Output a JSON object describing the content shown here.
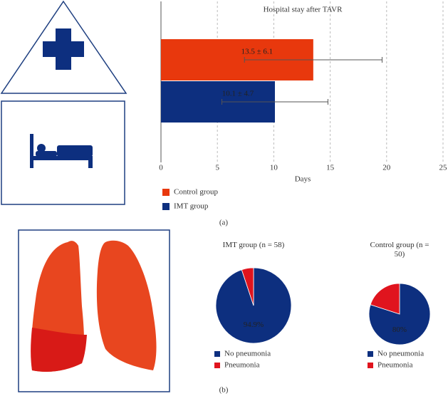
{
  "chart_data": [
    {
      "type": "bar",
      "orientation": "horizontal",
      "title": "Hospital stay after TAVR",
      "xlabel": "Days",
      "xlim": [
        0,
        25
      ],
      "xticks": [
        0,
        5,
        10,
        15,
        20,
        25
      ],
      "grid": true,
      "legend": "bottom-left",
      "caption": "(a)",
      "series": [
        {
          "name": "Control group",
          "color": "#e8380d",
          "values": [
            13.5
          ],
          "errors": [
            6.1
          ],
          "value_labels": [
            "13.5 ± 6.1"
          ]
        },
        {
          "name": "IMT group",
          "color": "#0d2f7f",
          "values": [
            10.1
          ],
          "errors": [
            4.7
          ],
          "value_labels": [
            "10.1 ± 4.7"
          ]
        }
      ]
    },
    {
      "type": "pie",
      "title": "IMT group (n = 58)",
      "categories": [
        "No pneumonia",
        "Pneumonia"
      ],
      "values": [
        94.9,
        5.1
      ],
      "value_labels": [
        "94.9%",
        null
      ],
      "colors": [
        "#0d2f7f",
        "#e0141e"
      ]
    },
    {
      "type": "pie",
      "title": "Control group (n = 50)",
      "categories": [
        "No pneumonia",
        "Pneumonia"
      ],
      "values": [
        80,
        20
      ],
      "value_labels": [
        "80%",
        null
      ],
      "colors": [
        "#0d2f7f",
        "#e0141e"
      ],
      "caption": "(b)"
    }
  ]
}
